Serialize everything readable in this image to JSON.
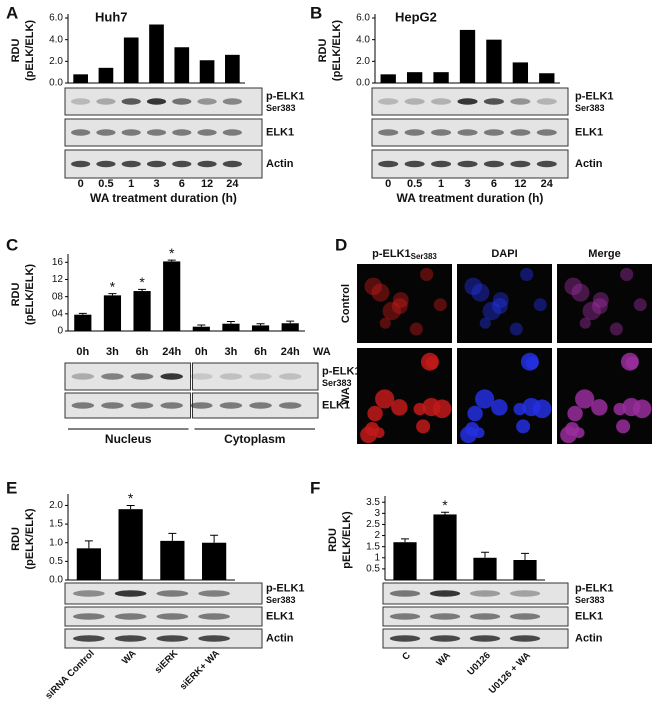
{
  "chart_data": [
    {
      "type": "bar",
      "panel": "A",
      "title": "Huh7",
      "ylabel": [
        "RDU",
        "(pELK/ELK)"
      ],
      "categories": [
        "0",
        "0.5",
        "1",
        "3",
        "6",
        "12",
        "24"
      ],
      "values": [
        0.8,
        1.4,
        4.2,
        5.4,
        3.3,
        2.1,
        2.6
      ],
      "color": "#000000",
      "ylim": [
        0,
        6
      ],
      "yticks": [
        {
          "value": 0,
          "label": "0.0"
        },
        {
          "value": 2,
          "label": "2.0"
        },
        {
          "value": 4,
          "label": "4.0"
        },
        {
          "value": 6,
          "label": "6.0"
        }
      ],
      "xlabel": "WA treatment duration (h)",
      "blots": [
        {
          "label": "p-ELK1",
          "sub": "Ser383"
        },
        {
          "label": "ELK1"
        },
        {
          "label": "Actin"
        }
      ]
    },
    {
      "type": "bar",
      "panel": "B",
      "title": "HepG2",
      "ylabel": [
        "RDU",
        "(pELK/ELK)"
      ],
      "categories": [
        "0",
        "0.5",
        "1",
        "3",
        "6",
        "12",
        "24"
      ],
      "values": [
        0.8,
        1.0,
        1.0,
        4.9,
        4.0,
        1.9,
        0.9
      ],
      "color": "#000000",
      "ylim": [
        0,
        6
      ],
      "yticks": [
        {
          "value": 0,
          "label": "0.0"
        },
        {
          "value": 2,
          "label": "2.0"
        },
        {
          "value": 4,
          "label": "4.0"
        },
        {
          "value": 6,
          "label": "6.0"
        }
      ],
      "xlabel": "WA treatment duration (h)",
      "blots": [
        {
          "label": "p-ELK1",
          "sub": "Ser383"
        },
        {
          "label": "ELK1"
        },
        {
          "label": "Actin"
        }
      ]
    },
    {
      "type": "bar",
      "panel": "C",
      "ylabel": [
        "RDU",
        "(pELK/ELK)"
      ],
      "categories": [
        "0h",
        "3h",
        "6h",
        "24h",
        "0h",
        "3h",
        "6h",
        "24h"
      ],
      "values": [
        3.8,
        8.3,
        9.3,
        16.2,
        1.0,
        1.7,
        1.3,
        1.8
      ],
      "errors": [
        0.3,
        0.4,
        0.4,
        0.3,
        0.4,
        0.5,
        0.4,
        0.5
      ],
      "significance": [
        null,
        "*",
        "*",
        "*",
        null,
        null,
        null,
        null
      ],
      "color": "#000000",
      "ylim": [
        0,
        17
      ],
      "yticks": [
        0,
        {
          "value": 4,
          "label": "04"
        },
        {
          "value": 8,
          "label": "08"
        },
        12,
        16
      ],
      "xlabel": "WA",
      "groups": [
        "Nucleus",
        "Cytoplasm"
      ],
      "blots": [
        {
          "label": "p-ELK1",
          "sub": "Ser383"
        },
        {
          "label": "ELK1"
        }
      ]
    },
    {
      "type": "bar",
      "panel": "E",
      "ylabel": [
        "RDU",
        "(pELK/ELK)"
      ],
      "categories": [
        "siRNA Control",
        "WA",
        "siERK",
        "siERK+ WA"
      ],
      "values": [
        0.85,
        1.9,
        1.05,
        1.0
      ],
      "errors": [
        0.2,
        0.1,
        0.2,
        0.2
      ],
      "significance": [
        null,
        "*",
        null,
        null
      ],
      "color": "#000000",
      "ylim": [
        0,
        2.2
      ],
      "yticks": [
        {
          "value": 0,
          "label": "0.0"
        },
        0.5,
        {
          "value": 1,
          "label": "1.0"
        },
        1.5,
        {
          "value": 2,
          "label": "2.0"
        }
      ],
      "blots": [
        {
          "label": "p-ELK1",
          "sub": "Ser383"
        },
        {
          "label": "ELK1"
        },
        {
          "label": "Actin"
        }
      ]
    },
    {
      "type": "bar",
      "panel": "F",
      "ylabel": [
        "RDU",
        "pELK/ELK)"
      ],
      "categories": [
        "C",
        "WA",
        "U0126",
        "U0126 + WA"
      ],
      "values": [
        1.7,
        2.95,
        1.0,
        0.9
      ],
      "errors": [
        0.15,
        0.1,
        0.25,
        0.3
      ],
      "significance": [
        null,
        "*",
        null,
        null
      ],
      "color": "#000000",
      "ylim": [
        0,
        3.6
      ],
      "yticks": [
        0.5,
        1,
        1.5,
        2,
        2.5,
        3,
        3.5
      ],
      "blots": [
        {
          "label": "p-ELK1",
          "sub": "Ser383"
        },
        {
          "label": "ELK1"
        },
        {
          "label": "Actin"
        }
      ]
    }
  ],
  "microscopy": {
    "panel": "D",
    "columns": [
      {
        "label": "p-ELK1",
        "sub": "Ser383"
      },
      {
        "label": "DAPI"
      },
      {
        "label": "Merge"
      }
    ],
    "rows": [
      "Control",
      "WA"
    ]
  }
}
